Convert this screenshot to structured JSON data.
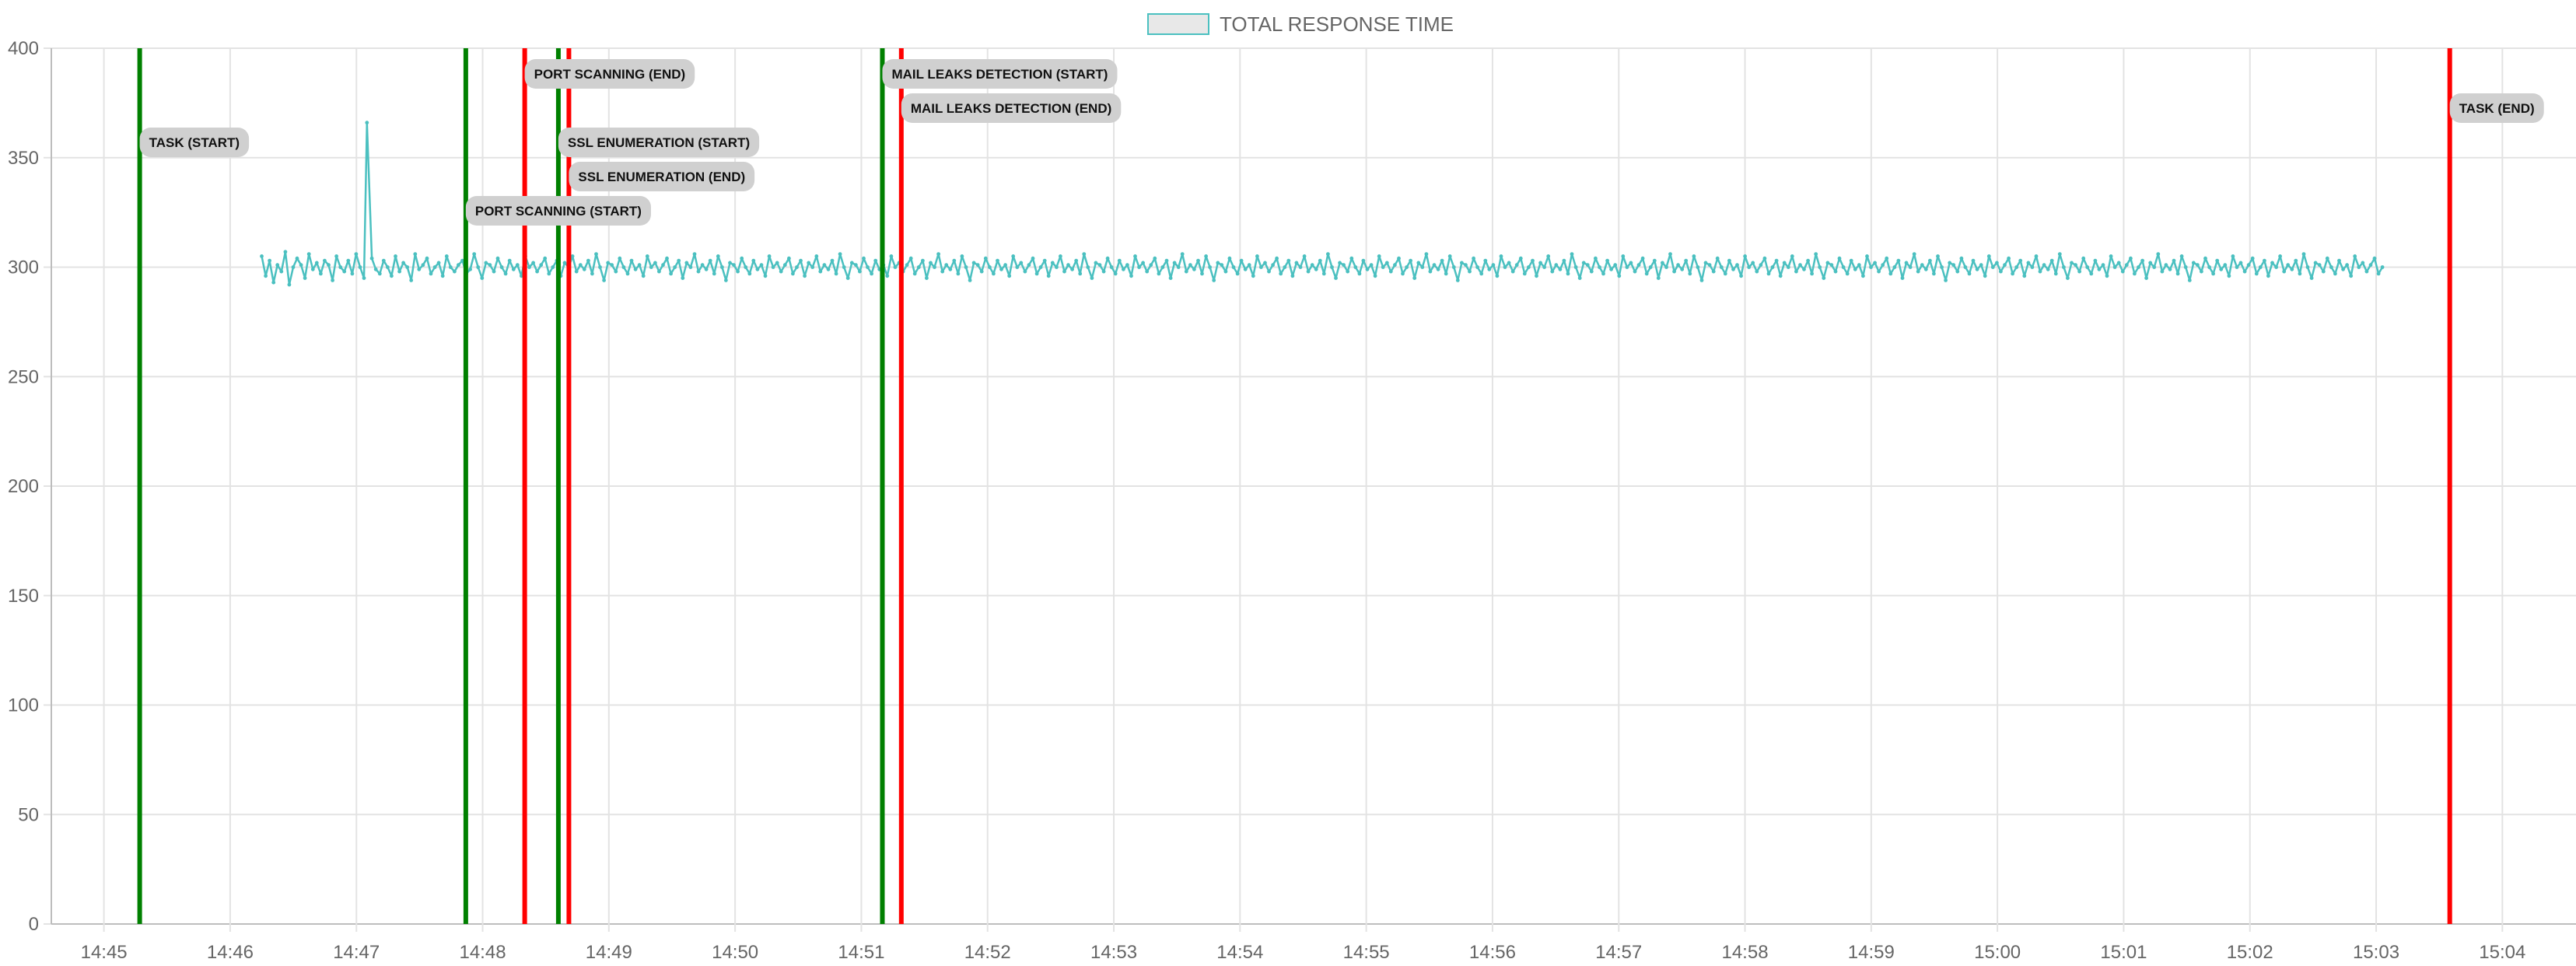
{
  "chart_data": {
    "type": "line",
    "legend": {
      "position": "top",
      "entries": [
        {
          "label": "TOTAL RESPONSE TIME",
          "border_color": "#4bc0c0",
          "fill_color": "#e8e8e8"
        }
      ]
    },
    "grid": true,
    "x_axis": {
      "type": "time",
      "range": [
        "14:44:35",
        "15:04:35"
      ],
      "tick_labels": [
        "14:45",
        "14:46",
        "14:47",
        "14:48",
        "14:49",
        "14:50",
        "14:51",
        "14:52",
        "14:53",
        "14:54",
        "14:55",
        "14:56",
        "14:57",
        "14:58",
        "14:59",
        "15:00",
        "15:01",
        "15:02",
        "15:03",
        "15:04"
      ]
    },
    "y_axis": {
      "range": [
        0,
        400
      ],
      "tick_labels": [
        "0",
        "50",
        "100",
        "150",
        "200",
        "250",
        "300",
        "350",
        "400"
      ]
    },
    "series": [
      {
        "name": "TOTAL RESPONSE TIME",
        "color": "#4bc0c0",
        "start_time": "14:46:15",
        "end_time": "15:03:03",
        "spike": {
          "time": "14:47:05",
          "value": 366
        },
        "values": [
          305,
          296,
          303,
          293,
          301,
          298,
          307,
          292,
          300,
          304,
          301,
          295,
          306,
          299,
          302,
          297,
          303,
          301,
          294,
          305,
          300,
          298,
          303,
          297,
          306,
          300,
          295,
          301,
          304,
          299,
          297,
          303,
          300,
          296,
          305,
          298,
          302,
          300,
          294,
          306,
          299,
          301,
          304,
          297,
          300,
          302,
          296,
          305,
          300,
          298,
          301,
          303,
          297,
          299,
          306,
          300,
          295,
          302,
          301,
          298,
          304,
          300,
          297,
          303,
          299,
          301,
          296,
          305,
          300,
          302,
          298,
          301,
          304,
          297,
          300,
          303,
          296,
          302,
          300,
          305,
          298,
          301,
          299,
          303,
          297,
          306,
          300,
          294,
          302,
          301,
          298,
          304,
          300,
          297,
          303,
          299,
          301,
          296,
          305,
          300,
          302,
          298,
          301,
          304,
          297,
          300,
          303,
          295,
          302,
          300,
          306,
          298,
          301,
          299,
          303,
          297,
          305,
          300,
          294,
          302,
          301,
          298,
          304,
          300,
          297,
          303,
          299,
          301,
          296,
          305,
          300,
          302,
          298,
          301,
          304,
          297,
          300,
          303,
          296,
          302,
          300,
          305,
          298,
          301,
          299,
          303,
          297,
          306,
          300,
          295,
          302,
          301,
          298,
          304,
          300,
          297,
          303,
          299,
          301,
          296,
          305,
          300,
          302,
          298,
          301,
          304,
          297,
          300,
          303,
          295,
          302,
          300,
          306,
          298,
          301,
          299,
          303,
          297,
          305,
          300,
          294,
          302,
          301,
          298,
          304,
          300,
          297,
          303,
          299,
          301,
          296,
          305,
          300,
          302,
          298,
          301,
          304,
          297,
          300,
          303,
          296,
          302,
          300,
          305,
          298,
          301,
          299,
          303,
          297,
          306,
          300,
          295,
          302,
          301,
          298,
          304,
          300,
          297,
          303,
          299,
          301,
          296,
          305,
          300,
          302,
          298,
          301,
          304,
          297,
          300,
          303,
          295,
          302,
          300,
          306,
          298,
          301,
          299,
          303,
          297,
          305,
          300,
          294,
          302,
          301,
          298,
          304,
          300,
          297,
          303,
          299,
          301,
          296,
          305,
          300,
          302,
          298,
          301,
          304,
          297,
          300,
          303,
          296,
          302,
          300,
          305,
          298,
          301,
          299,
          303,
          297,
          306,
          300,
          295,
          302,
          301,
          298,
          304,
          300,
          297,
          303,
          299,
          301,
          296,
          305,
          300,
          302,
          298,
          301,
          304,
          297,
          300,
          303,
          295,
          302,
          300,
          306,
          298,
          301,
          299,
          303,
          297,
          305,
          300,
          294,
          302,
          301,
          298,
          304,
          300,
          297,
          303,
          299,
          301,
          296,
          305,
          300,
          302,
          298,
          301,
          304,
          297,
          300,
          303,
          296,
          302,
          300,
          305,
          298,
          301,
          299,
          303,
          297,
          306,
          300,
          295,
          302,
          301,
          298,
          304,
          300,
          297,
          303,
          299,
          301,
          296,
          305,
          300,
          302,
          298,
          301,
          304,
          297,
          300,
          303,
          295,
          302,
          300,
          306,
          298,
          301,
          299,
          303,
          297,
          305,
          300,
          294,
          302,
          301,
          298,
          304,
          300,
          297,
          303,
          299,
          301,
          296,
          305,
          300,
          302,
          298,
          301,
          304,
          297,
          300,
          303,
          296,
          302,
          300,
          305,
          298,
          301,
          299,
          303,
          297,
          306,
          300,
          295,
          302,
          301,
          298,
          304,
          300,
          297,
          303,
          299,
          301,
          296,
          305,
          300,
          302,
          298,
          301,
          304,
          297,
          300,
          303,
          295,
          302,
          300,
          306,
          298,
          301,
          299,
          303,
          297,
          305,
          300,
          294,
          302,
          301,
          298,
          304,
          300,
          297,
          303,
          299,
          301,
          296,
          305,
          300,
          302,
          298,
          301,
          304,
          297,
          300,
          303,
          296,
          302,
          300,
          305,
          298,
          301,
          299,
          303,
          297,
          306,
          300,
          295,
          302,
          301,
          298,
          304,
          300,
          297,
          303,
          299,
          301,
          296,
          305,
          300,
          302,
          298,
          301,
          304,
          297,
          300,
          303,
          295,
          302,
          300,
          306,
          298,
          301,
          299,
          303,
          297,
          305,
          300,
          294,
          302,
          301,
          298,
          304,
          300,
          297,
          303,
          299,
          301,
          296,
          305,
          300,
          302,
          298,
          301,
          304,
          297,
          300,
          303,
          296,
          302,
          300,
          305,
          298,
          301,
          299,
          303,
          297,
          306,
          300,
          295,
          302,
          301,
          298,
          304,
          300,
          297,
          303,
          299,
          301,
          296,
          305,
          300,
          302,
          298,
          301,
          304,
          297,
          300
        ]
      }
    ],
    "annotations": [
      {
        "label": "TASK (START)",
        "time": "14:45:17",
        "color": "#008000",
        "label_row": 2
      },
      {
        "label": "PORT SCANNING (START)",
        "time": "14:47:52",
        "color": "#008000",
        "label_row": 4
      },
      {
        "label": "PORT SCANNING (END)",
        "time": "14:48:20",
        "color": "#ff0000",
        "label_row": 0
      },
      {
        "label": "SSL ENUMERATION (START)",
        "time": "14:48:36",
        "color": "#008000",
        "label_row": 2
      },
      {
        "label": "SSL ENUMERATION (END)",
        "time": "14:48:41",
        "color": "#ff0000",
        "label_row": 3
      },
      {
        "label": "MAIL LEAKS DETECTION (START)",
        "time": "14:51:10",
        "color": "#008000",
        "label_row": 0
      },
      {
        "label": "MAIL LEAKS DETECTION (END)",
        "time": "14:51:19",
        "color": "#ff0000",
        "label_row": 1
      },
      {
        "label": "TASK (END)",
        "time": "15:03:35",
        "color": "#ff0000",
        "label_row": 1
      }
    ]
  }
}
